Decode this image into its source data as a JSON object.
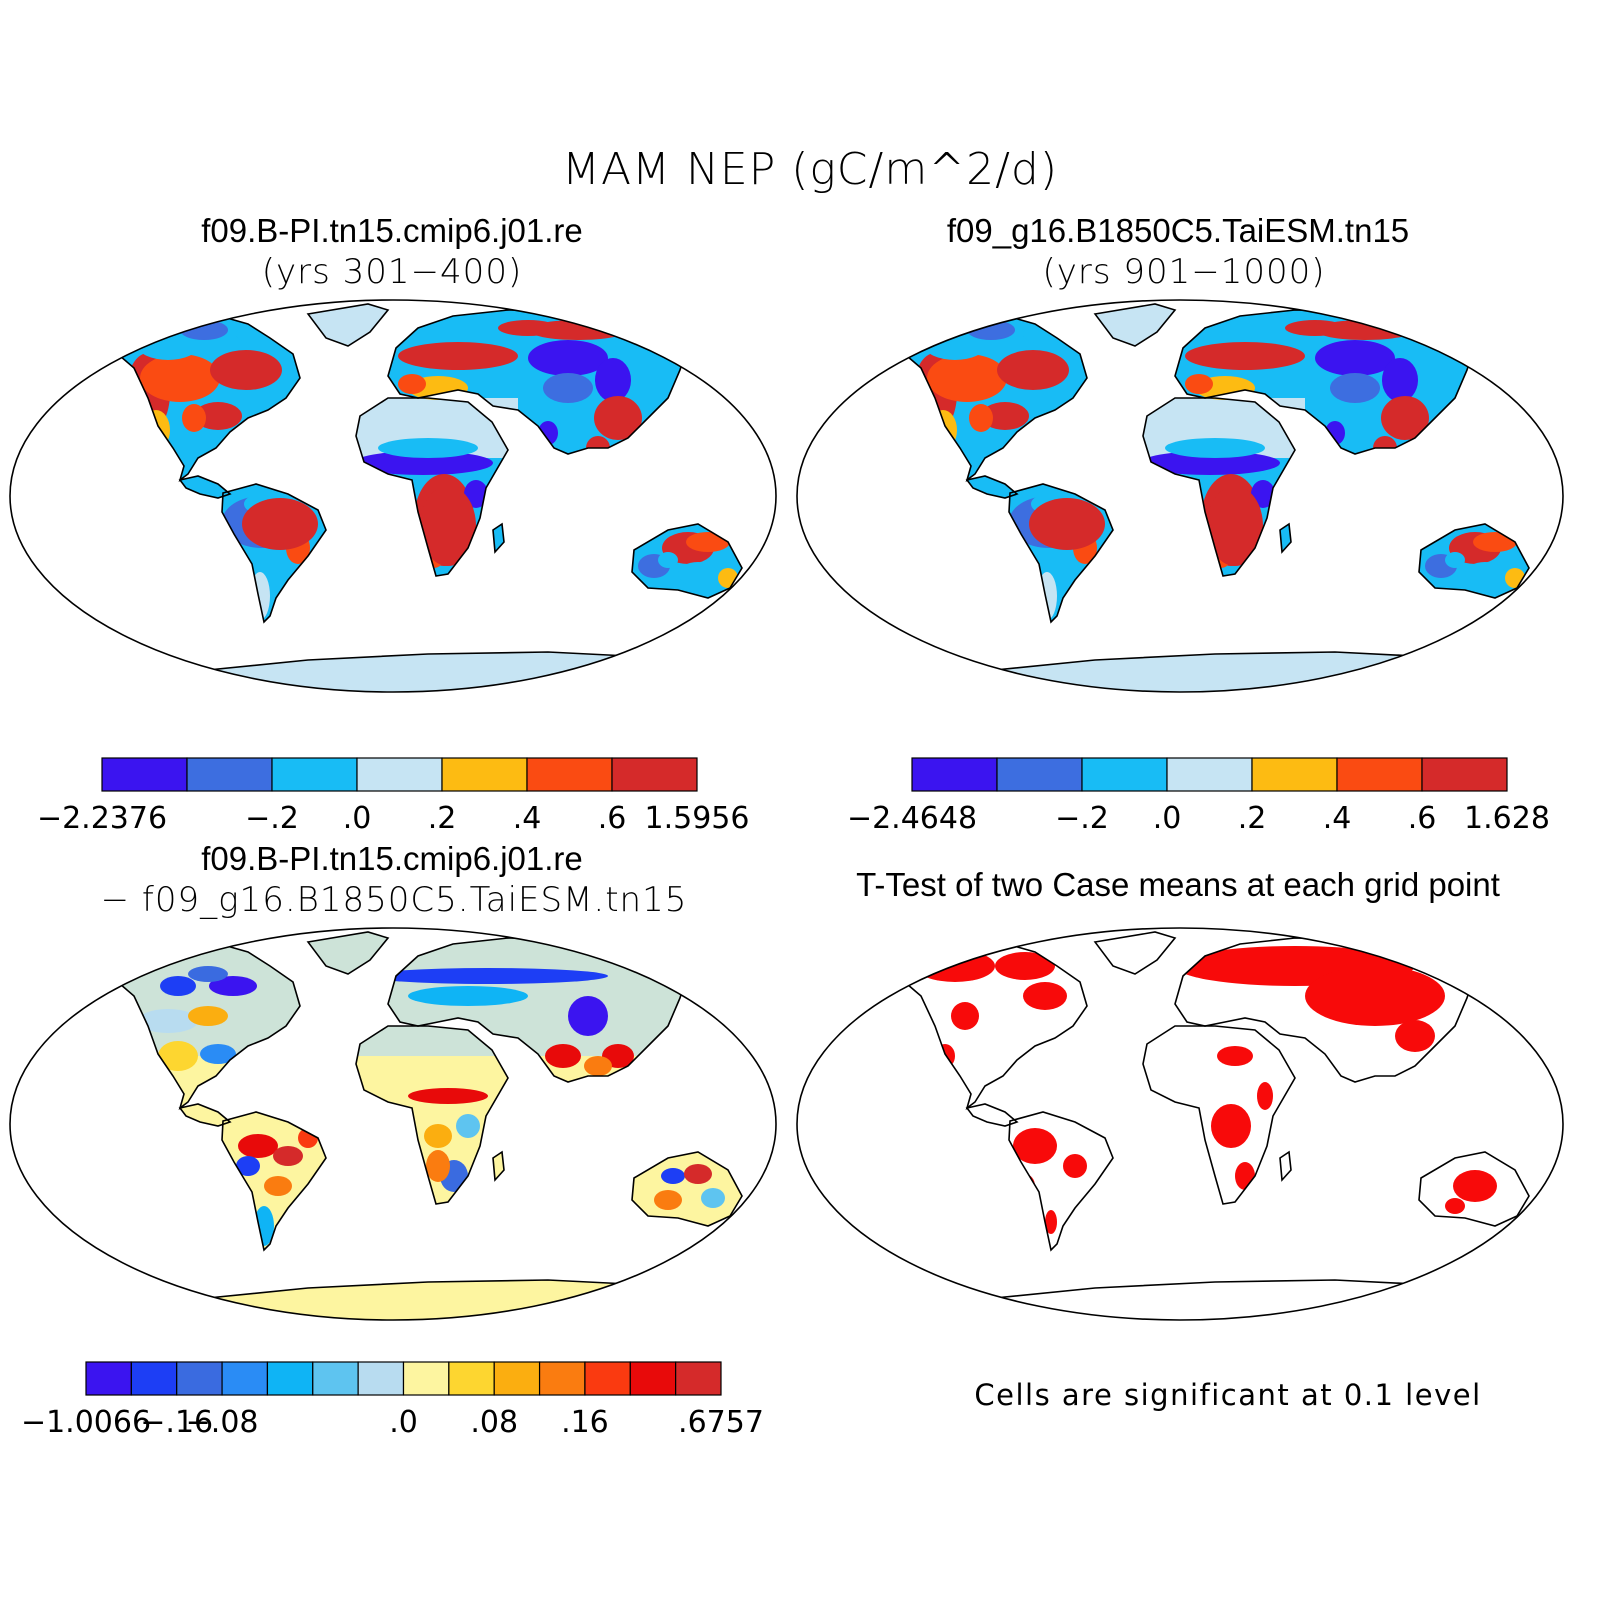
{
  "title": "MAM NEP (gC/m^2/d)",
  "colors": {
    "land_palette": [
      "#3b14f0",
      "#3d6ee0",
      "#18bcf5",
      "#c6e4f3",
      "#fdbb12",
      "#fa4b12",
      "#d52a2a"
    ],
    "diff_palette": [
      "#3b14f0",
      "#1d3ef5",
      "#3a6be0",
      "#2a8cf5",
      "#0fb4f5",
      "#5ec4f0",
      "#b8dcf0",
      "#fdf5a0",
      "#fdd630",
      "#fbae10",
      "#fa7c10",
      "#fa3a10",
      "#e80a0a",
      "#d52a2a"
    ],
    "significant": "#f80a0a",
    "coast": "#000000"
  },
  "panels": [
    {
      "title": "f09.B-PI.tn15.cmip6.j01.re",
      "subtitle": "(yrs 301−400)",
      "fill": "mean",
      "colorbar": {
        "labels": [
          "−2.2376",
          "−.2",
          ".0",
          ".2",
          ".4",
          ".6",
          "1.5956"
        ]
      }
    },
    {
      "title": "f09_g16.B1850C5.TaiESM.tn15",
      "subtitle": "(yrs 901−1000)",
      "fill": "mean",
      "colorbar": {
        "labels": [
          "−2.4648",
          "−.2",
          ".0",
          ".2",
          ".4",
          ".6",
          "1.628"
        ]
      }
    },
    {
      "title": "f09.B-PI.tn15.cmip6.j01.re",
      "subtitle": "− f09_g16.B1850C5.TaiESM.tn15",
      "fill": "difference",
      "colorbar": {
        "labels": [
          "−1.0066",
          "−.16",
          "−.08",
          ".0",
          ".08",
          ".16",
          ".6757"
        ]
      }
    },
    {
      "title": "T-Test of two Case means at each grid point",
      "fill": "ttest",
      "note": "Cells are significant at 0.1 level"
    }
  ]
}
